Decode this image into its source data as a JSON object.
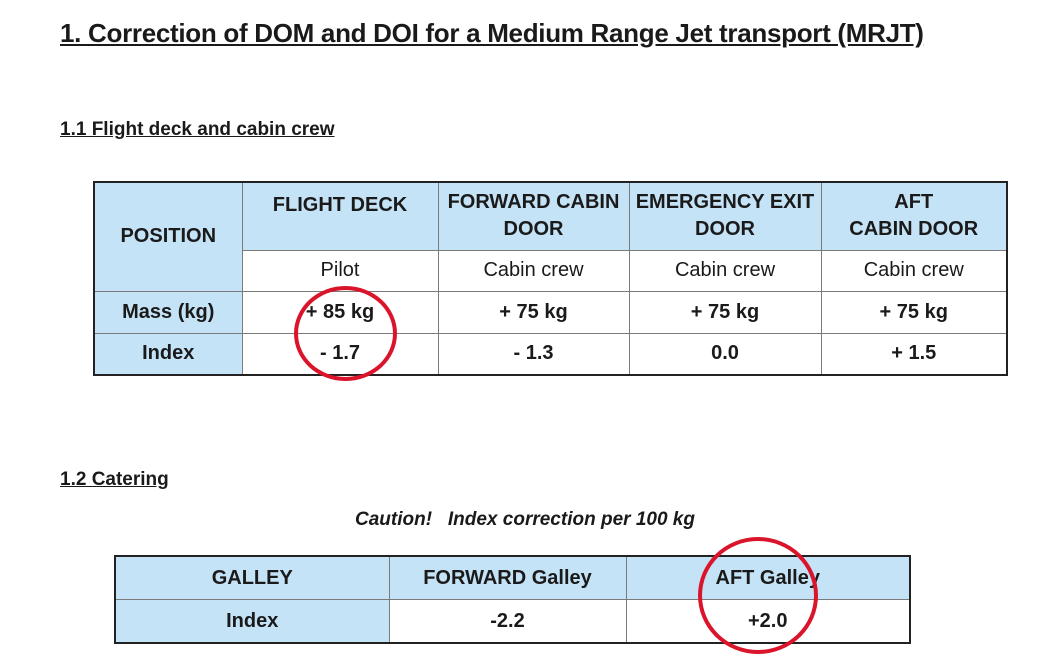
{
  "title": "1. Correction of DOM and DOI for a Medium Range Jet transport (MRJT)",
  "section1": {
    "heading": "1.1 Flight deck and cabin crew",
    "position_label": "POSITION",
    "columns": [
      {
        "line1": "FLIGHT DECK",
        "line2": "",
        "role": "Pilot",
        "mass": "+ 85 kg",
        "index": "- 1.7"
      },
      {
        "line1": "FORWARD CABIN",
        "line2": "DOOR",
        "role": "Cabin crew",
        "mass": "+ 75 kg",
        "index": "- 1.3"
      },
      {
        "line1": "EMERGENCY EXIT",
        "line2": "DOOR",
        "role": "Cabin crew",
        "mass": "+ 75 kg",
        "index": "0.0"
      },
      {
        "line1": "AFT",
        "line2": "CABIN DOOR",
        "role": "Cabin crew",
        "mass": "+ 75 kg",
        "index": "+ 1.5"
      }
    ],
    "mass_label": "Mass (kg)",
    "index_label": "Index"
  },
  "section2": {
    "heading": "1.2 Catering",
    "caution": "Caution!   Index correction per 100 kg",
    "header": [
      "GALLEY",
      "FORWARD Galley",
      "AFT Galley"
    ],
    "index_label": "Index",
    "values": [
      "-2.2",
      "+2.0"
    ]
  },
  "colors": {
    "header_fill": "#c5e3f7",
    "highlight_ring": "#d9142b"
  }
}
